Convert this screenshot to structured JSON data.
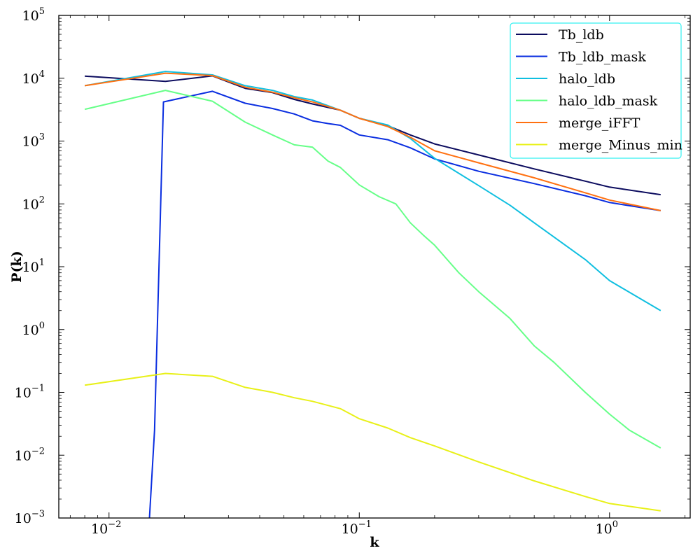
{
  "chart_data": {
    "type": "line",
    "xlabel": "k",
    "ylabel": "P(k)",
    "xscale": "log",
    "yscale": "log",
    "xlim": [
      0.0063,
      2.1
    ],
    "ylim": [
      0.001,
      100000
    ],
    "grid": false,
    "legend_position": "top-right",
    "x_ticks": [
      {
        "value": 0.01,
        "base": "10",
        "exp": "−2"
      },
      {
        "value": 0.1,
        "base": "10",
        "exp": "−1"
      },
      {
        "value": 1,
        "base": "10",
        "exp": "0"
      }
    ],
    "y_ticks": [
      {
        "value": 0.001,
        "base": "10",
        "exp": "−3"
      },
      {
        "value": 0.01,
        "base": "10",
        "exp": "−2"
      },
      {
        "value": 0.1,
        "base": "10",
        "exp": "−1"
      },
      {
        "value": 1,
        "base": "10",
        "exp": "0"
      },
      {
        "value": 10,
        "base": "10",
        "exp": "1"
      },
      {
        "value": 100,
        "base": "10",
        "exp": "2"
      },
      {
        "value": 1000,
        "base": "10",
        "exp": "3"
      },
      {
        "value": 10000,
        "base": "10",
        "exp": "4"
      },
      {
        "value": 100000,
        "base": "10",
        "exp": "5"
      }
    ],
    "series": [
      {
        "name": "Tb_ldb",
        "color": "#0b0b5e",
        "points": [
          [
            0.008,
            10800
          ],
          [
            0.0168,
            8900
          ],
          [
            0.0259,
            10900
          ],
          [
            0.035,
            6900
          ],
          [
            0.045,
            5900
          ],
          [
            0.055,
            4600
          ],
          [
            0.065,
            3900
          ],
          [
            0.084,
            3100
          ],
          [
            0.1,
            2300
          ],
          [
            0.13,
            1750
          ],
          [
            0.16,
            1250
          ],
          [
            0.2,
            900
          ],
          [
            0.3,
            600
          ],
          [
            0.5,
            360
          ],
          [
            0.8,
            230
          ],
          [
            1.0,
            185
          ],
          [
            1.6,
            140
          ]
        ]
      },
      {
        "name": "Tb_ldb_mask",
        "color": "#0a2ee0",
        "points": [
          [
            0.0145,
            0.00095
          ],
          [
            0.0152,
            0.025
          ],
          [
            0.0165,
            4200
          ],
          [
            0.0259,
            6200
          ],
          [
            0.035,
            4000
          ],
          [
            0.045,
            3300
          ],
          [
            0.055,
            2700
          ],
          [
            0.065,
            2100
          ],
          [
            0.075,
            1900
          ],
          [
            0.084,
            1780
          ],
          [
            0.1,
            1250
          ],
          [
            0.13,
            1050
          ],
          [
            0.16,
            780
          ],
          [
            0.2,
            520
          ],
          [
            0.3,
            330
          ],
          [
            0.5,
            210
          ],
          [
            0.8,
            135
          ],
          [
            1.0,
            105
          ],
          [
            1.6,
            78
          ]
        ]
      },
      {
        "name": "halo_ldb",
        "color": "#10bfe0",
        "points": [
          [
            0.008,
            7600
          ],
          [
            0.0168,
            12800
          ],
          [
            0.0259,
            11300
          ],
          [
            0.035,
            7600
          ],
          [
            0.045,
            6400
          ],
          [
            0.055,
            5100
          ],
          [
            0.065,
            4500
          ],
          [
            0.084,
            3100
          ],
          [
            0.1,
            2300
          ],
          [
            0.13,
            1800
          ],
          [
            0.16,
            1100
          ],
          [
            0.2,
            530
          ],
          [
            0.3,
            195
          ],
          [
            0.4,
            95
          ],
          [
            0.5,
            50
          ],
          [
            0.8,
            13
          ],
          [
            1.0,
            6
          ],
          [
            1.6,
            2
          ]
        ]
      },
      {
        "name": "halo_ldb_mask",
        "color": "#66ff88",
        "points": [
          [
            0.008,
            3200
          ],
          [
            0.0168,
            6400
          ],
          [
            0.0259,
            4300
          ],
          [
            0.035,
            2000
          ],
          [
            0.045,
            1250
          ],
          [
            0.055,
            870
          ],
          [
            0.065,
            800
          ],
          [
            0.075,
            480
          ],
          [
            0.084,
            380
          ],
          [
            0.1,
            200
          ],
          [
            0.12,
            130
          ],
          [
            0.14,
            100
          ],
          [
            0.16,
            50
          ],
          [
            0.18,
            32
          ],
          [
            0.2,
            22
          ],
          [
            0.25,
            8
          ],
          [
            0.3,
            4
          ],
          [
            0.4,
            1.5
          ],
          [
            0.5,
            0.55
          ],
          [
            0.6,
            0.3
          ],
          [
            0.8,
            0.1
          ],
          [
            1.0,
            0.045
          ],
          [
            1.2,
            0.025
          ],
          [
            1.6,
            0.013
          ]
        ]
      },
      {
        "name": "merge_iFFT",
        "color": "#ff7010",
        "points": [
          [
            0.008,
            7600
          ],
          [
            0.0168,
            12000
          ],
          [
            0.0259,
            11000
          ],
          [
            0.035,
            7200
          ],
          [
            0.045,
            6000
          ],
          [
            0.055,
            4900
          ],
          [
            0.065,
            4200
          ],
          [
            0.084,
            3100
          ],
          [
            0.1,
            2300
          ],
          [
            0.13,
            1700
          ],
          [
            0.16,
            1150
          ],
          [
            0.2,
            700
          ],
          [
            0.3,
            450
          ],
          [
            0.5,
            260
          ],
          [
            0.8,
            150
          ],
          [
            1.0,
            115
          ],
          [
            1.6,
            78
          ]
        ]
      },
      {
        "name": "merge_Minus_min",
        "color": "#e8f018",
        "points": [
          [
            0.008,
            0.13
          ],
          [
            0.0168,
            0.2
          ],
          [
            0.0259,
            0.18
          ],
          [
            0.035,
            0.12
          ],
          [
            0.045,
            0.1
          ],
          [
            0.055,
            0.082
          ],
          [
            0.065,
            0.072
          ],
          [
            0.084,
            0.055
          ],
          [
            0.1,
            0.038
          ],
          [
            0.13,
            0.027
          ],
          [
            0.16,
            0.019
          ],
          [
            0.2,
            0.014
          ],
          [
            0.3,
            0.0078
          ],
          [
            0.5,
            0.0039
          ],
          [
            0.8,
            0.0022
          ],
          [
            1.0,
            0.0017
          ],
          [
            1.6,
            0.0013
          ]
        ]
      }
    ]
  }
}
